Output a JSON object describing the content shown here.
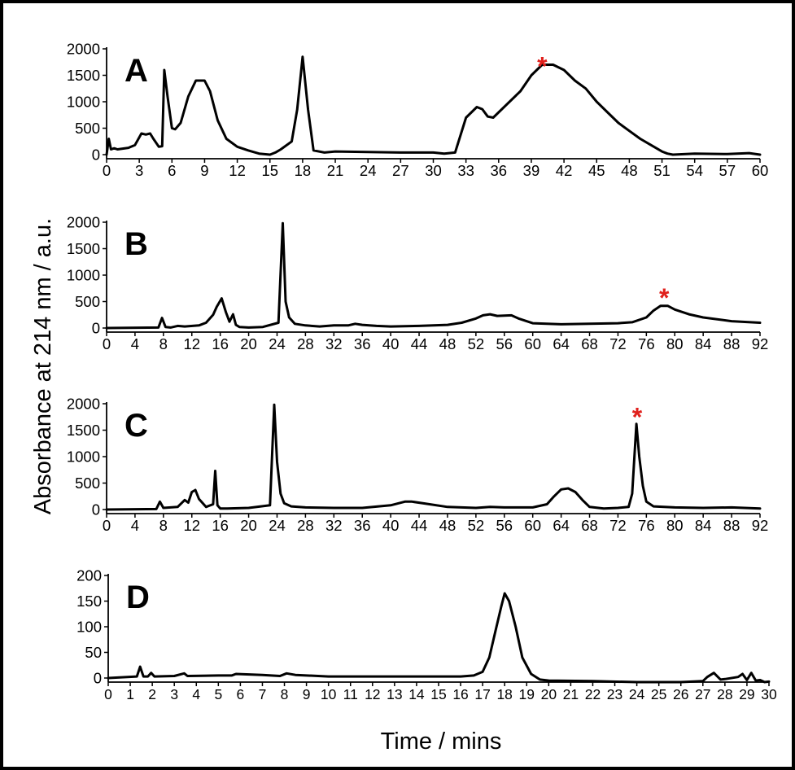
{
  "ylabel": "Absorbance at 214 nm / a.u.",
  "xlabel": "Time / mins",
  "colors": {
    "line": "#000000",
    "asterisk": "#e0201c"
  },
  "chart_data": [
    {
      "type": "line",
      "panel": "A",
      "xlim": [
        0,
        60
      ],
      "ylim": [
        0,
        2000
      ],
      "xticks": [
        0,
        3,
        6,
        9,
        12,
        15,
        18,
        21,
        24,
        27,
        30,
        33,
        36,
        39,
        42,
        45,
        48,
        51,
        54,
        57,
        60
      ],
      "yticks": [
        0,
        500,
        1000,
        1500,
        2000
      ],
      "marker": {
        "symbol": "*",
        "x": 40,
        "y": 1750
      },
      "x": [
        0,
        0.2,
        0.4,
        0.7,
        1,
        2,
        2.6,
        3.2,
        3.6,
        4,
        4.3,
        4.8,
        5.1,
        5.3,
        5.6,
        6,
        6.3,
        6.8,
        7.5,
        8.2,
        9,
        9.5,
        10.2,
        11,
        12,
        13,
        14,
        15,
        15.5,
        16,
        17,
        17.5,
        18,
        18.5,
        19,
        20,
        21,
        24,
        27,
        30,
        31,
        32,
        33,
        34,
        34.5,
        35,
        35.5,
        36,
        37,
        38,
        39,
        40,
        41,
        42,
        43,
        44,
        45,
        46,
        47,
        48,
        49,
        50,
        51,
        51.5,
        52,
        54,
        57,
        59,
        60
      ],
      "y": [
        0,
        300,
        100,
        120,
        100,
        130,
        180,
        400,
        380,
        400,
        300,
        150,
        160,
        1600,
        1100,
        500,
        480,
        600,
        1100,
        1400,
        1400,
        1200,
        650,
        300,
        150,
        80,
        20,
        0,
        40,
        100,
        250,
        850,
        1850,
        850,
        80,
        40,
        60,
        50,
        40,
        40,
        20,
        40,
        700,
        900,
        860,
        720,
        700,
        800,
        1000,
        1200,
        1500,
        1700,
        1700,
        1600,
        1400,
        1250,
        1000,
        800,
        600,
        450,
        300,
        180,
        60,
        20,
        0,
        20,
        10,
        30,
        0
      ]
    },
    {
      "type": "line",
      "panel": "B",
      "xlim": [
        0,
        92
      ],
      "ylim": [
        0,
        2000
      ],
      "xticks": [
        0,
        4,
        8,
        12,
        16,
        20,
        24,
        28,
        32,
        36,
        40,
        44,
        48,
        52,
        56,
        60,
        64,
        68,
        72,
        76,
        80,
        84,
        88,
        92
      ],
      "yticks": [
        0,
        500,
        1000,
        1500,
        2000
      ],
      "marker": {
        "symbol": "*",
        "x": 78.5,
        "y": 650
      },
      "x": [
        0,
        7.3,
        7.8,
        8.3,
        9,
        10,
        11,
        13,
        14,
        15,
        15.5,
        16.2,
        16.8,
        17.3,
        17.8,
        18.2,
        18.7,
        20,
        22,
        24.2,
        24.8,
        25.2,
        25.7,
        26.5,
        28,
        30,
        32,
        34,
        35,
        36,
        38,
        40,
        44,
        48,
        50,
        52,
        53,
        54,
        55,
        57,
        58,
        60,
        64,
        68,
        72,
        74,
        76,
        77,
        78,
        79,
        80,
        82,
        84,
        88,
        92
      ],
      "y": [
        0,
        10,
        190,
        20,
        10,
        40,
        30,
        50,
        100,
        250,
        400,
        560,
        300,
        120,
        260,
        60,
        20,
        10,
        20,
        100,
        1980,
        500,
        200,
        80,
        50,
        30,
        50,
        50,
        80,
        60,
        40,
        30,
        40,
        60,
        100,
        180,
        240,
        260,
        230,
        240,
        180,
        90,
        70,
        80,
        90,
        110,
        200,
        330,
        420,
        420,
        350,
        260,
        200,
        130,
        100
      ]
    },
    {
      "type": "line",
      "panel": "C",
      "xlim": [
        0,
        92
      ],
      "ylim": [
        0,
        2000
      ],
      "xticks": [
        0,
        4,
        8,
        12,
        16,
        20,
        24,
        28,
        32,
        36,
        40,
        44,
        48,
        52,
        56,
        60,
        64,
        68,
        72,
        76,
        80,
        84,
        88,
        92
      ],
      "yticks": [
        0,
        500,
        1000,
        1500,
        2000
      ],
      "marker": {
        "symbol": "*",
        "x": 74.7,
        "y": 1820
      },
      "x": [
        0,
        7,
        7.5,
        8,
        10,
        11,
        11.5,
        12,
        12.5,
        13,
        14,
        15,
        15.3,
        15.6,
        16,
        17,
        20,
        23,
        23.6,
        24,
        24.5,
        25,
        26,
        28,
        32,
        36,
        40,
        42,
        43,
        45,
        48,
        52,
        54,
        56,
        60,
        62,
        63,
        64,
        65,
        66,
        67,
        68,
        70,
        72,
        73.5,
        74,
        74.6,
        75,
        75.5,
        76,
        77,
        80,
        84,
        88,
        92
      ],
      "y": [
        0,
        10,
        150,
        30,
        50,
        180,
        130,
        330,
        370,
        200,
        50,
        100,
        730,
        80,
        20,
        20,
        30,
        80,
        1980,
        900,
        300,
        120,
        60,
        40,
        30,
        30,
        80,
        150,
        150,
        110,
        50,
        30,
        50,
        40,
        40,
        100,
        250,
        380,
        400,
        330,
        180,
        50,
        20,
        30,
        50,
        300,
        1620,
        1000,
        450,
        150,
        60,
        40,
        30,
        40,
        20
      ]
    },
    {
      "type": "line",
      "panel": "D",
      "xlim": [
        0,
        30
      ],
      "ylim": [
        0,
        200
      ],
      "xticks": [
        0,
        1,
        2,
        3,
        4,
        5,
        6,
        7,
        8,
        9,
        10,
        11,
        12,
        13,
        14,
        15,
        16,
        17,
        18,
        19,
        20,
        21,
        22,
        23,
        24,
        25,
        26,
        27,
        28,
        29,
        30
      ],
      "yticks": [
        0,
        50,
        100,
        150,
        200
      ],
      "x": [
        0,
        1.3,
        1.45,
        1.6,
        1.8,
        1.95,
        2.1,
        3,
        3.45,
        3.6,
        5,
        5.6,
        5.8,
        7,
        7.8,
        8.1,
        8.5,
        10,
        12,
        14,
        16,
        16.6,
        17,
        17.3,
        17.6,
        17.85,
        18,
        18.2,
        18.5,
        18.8,
        19.2,
        19.6,
        20,
        22,
        24,
        26,
        27,
        27.2,
        27.5,
        27.8,
        28,
        28.6,
        28.8,
        29,
        29.2,
        29.4,
        29.6,
        29.8,
        30
      ],
      "y": [
        0,
        3,
        22,
        3,
        3,
        10,
        3,
        4,
        9,
        4,
        5,
        5,
        8,
        6,
        4,
        9,
        6,
        3,
        3,
        3,
        3,
        5,
        12,
        40,
        95,
        140,
        165,
        150,
        100,
        40,
        8,
        -3,
        -5,
        -6,
        -8,
        -8,
        -6,
        2,
        10,
        -3,
        -2,
        2,
        8,
        -4,
        10,
        -5,
        -4,
        -8,
        -7
      ]
    }
  ]
}
